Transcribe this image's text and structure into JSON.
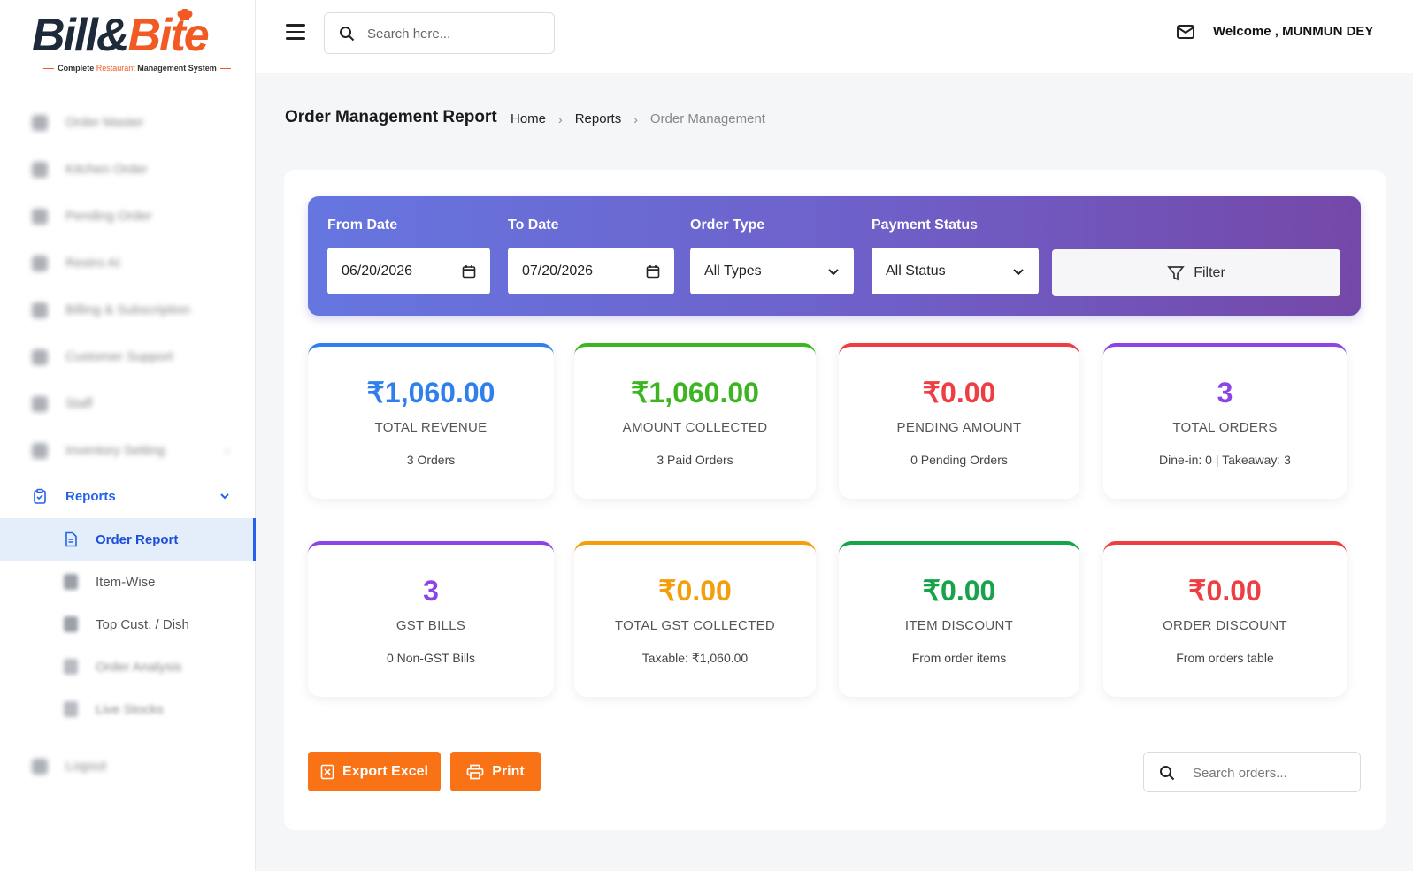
{
  "brand": {
    "name_part1": "Bill",
    "name_amp": "&",
    "name_part2": "Bite",
    "tagline_pre": "Complete",
    "tagline_red": "Restaurant",
    "tagline_post": "Management System"
  },
  "sidebar": {
    "blurred_items": [
      {
        "label": "Order Master"
      },
      {
        "label": "Kitchen Order"
      },
      {
        "label": "Pending Order"
      },
      {
        "label": "Restro AI"
      },
      {
        "label": "Billing & Subscription"
      },
      {
        "label": "Customer Support"
      },
      {
        "label": "Staff"
      },
      {
        "label": "Inventory Setting"
      }
    ],
    "reports_label": "Reports",
    "sub_items": [
      {
        "label": "Order Report"
      },
      {
        "label": "Item-Wise"
      },
      {
        "label": "Top Cust. / Dish"
      },
      {
        "label": "Order Analysis"
      },
      {
        "label": "Live Stocks"
      }
    ],
    "logout_label": "Logout"
  },
  "header": {
    "search_placeholder": "Search here...",
    "welcome": "Welcome , MUNMUN DEY"
  },
  "page": {
    "title": "Order Management Report",
    "breadcrumb": [
      "Home",
      "Reports",
      "Order Management"
    ]
  },
  "filters": {
    "from_label": "From Date",
    "from_value": "06/20/2026",
    "to_label": "To Date",
    "to_value": "07/20/2026",
    "type_label": "Order Type",
    "type_value": "All Types",
    "status_label": "Payment Status",
    "status_value": "All Status",
    "filter_button": "Filter"
  },
  "stats": [
    {
      "value": "₹1,060.00",
      "label": "TOTAL REVENUE",
      "sub": "3 Orders",
      "color": "#2f80ed"
    },
    {
      "value": "₹1,060.00",
      "label": "AMOUNT COLLECTED",
      "sub": "3 Paid Orders",
      "color": "#3cb521"
    },
    {
      "value": "₹0.00",
      "label": "PENDING AMOUNT",
      "sub": "0 Pending Orders",
      "color": "#ef3e43"
    },
    {
      "value": "3",
      "label": "TOTAL ORDERS",
      "sub": "Dine-in: 0 | Takeaway: 3",
      "color": "#8b44e6"
    },
    {
      "value": "3",
      "label": "GST BILLS",
      "sub": "0 Non-GST Bills",
      "color": "#8b44e6"
    },
    {
      "value": "₹0.00",
      "label": "TOTAL GST COLLECTED",
      "sub": "Taxable: ₹1,060.00",
      "color": "#f59e0b"
    },
    {
      "value": "₹0.00",
      "label": "ITEM DISCOUNT",
      "sub": "From order items",
      "color": "#16a34a"
    },
    {
      "value": "₹0.00",
      "label": "ORDER DISCOUNT",
      "sub": "From orders table",
      "color": "#ef3e43"
    }
  ],
  "actions": {
    "export_label": "Export Excel",
    "print_label": "Print",
    "search_placeholder": "Search orders..."
  },
  "colors": {
    "accent": "#2563eb",
    "button": "#f97316",
    "brand_orange": "#f15a22"
  }
}
